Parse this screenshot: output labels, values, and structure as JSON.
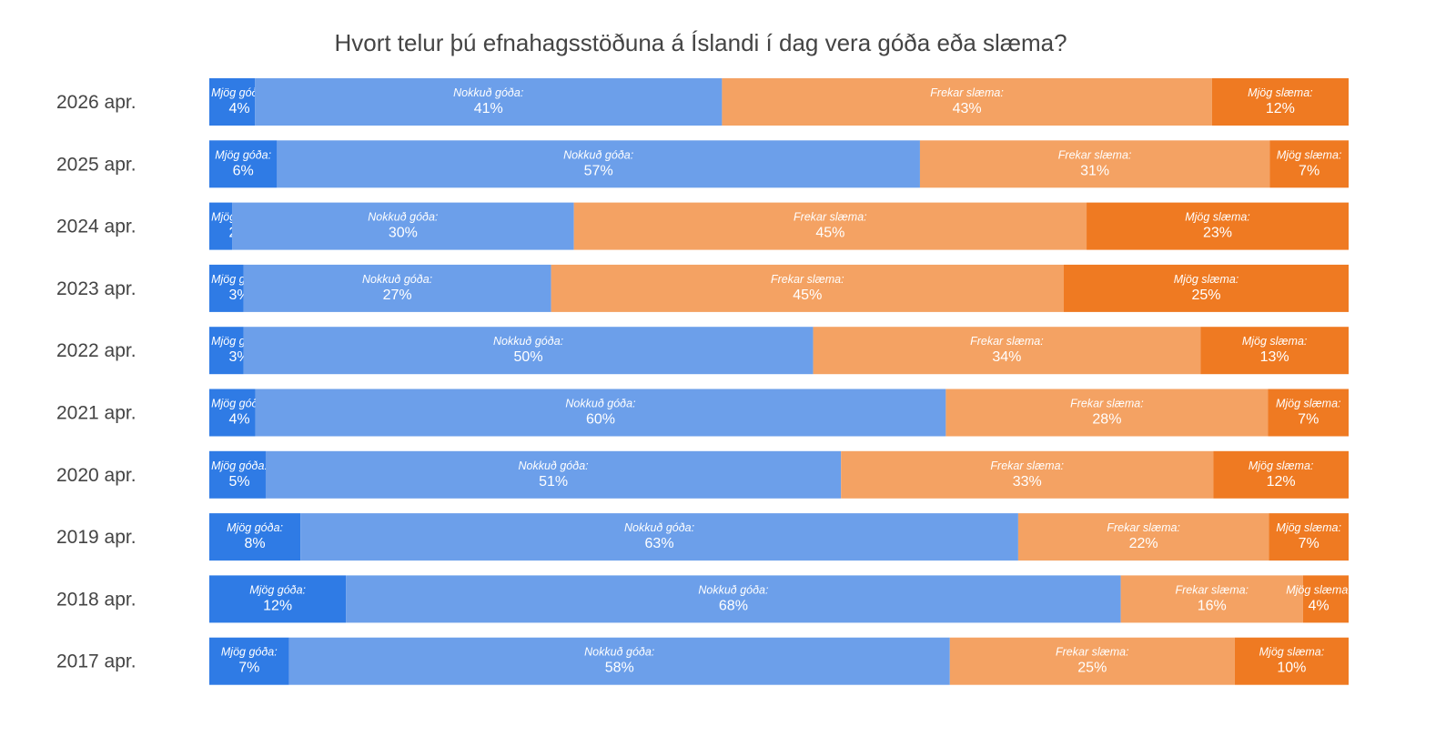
{
  "chart_data": {
    "type": "bar",
    "orientation": "horizontal",
    "stacked": "100%",
    "title": "Hvort telur þú efnahagsstöðuna á Íslandi í dag vera góða eða slæma?",
    "categories": [
      "2026 apr.",
      "2025 apr.",
      "2024 apr.",
      "2023 apr.",
      "2022 apr.",
      "2021 apr.",
      "2020 apr.",
      "2019 apr.",
      "2018 apr.",
      "2017 apr."
    ],
    "series": [
      {
        "name": "Mjög góða:",
        "color": "#2f7be5",
        "values": [
          4,
          6,
          2,
          3,
          3,
          4,
          5,
          8,
          12,
          7
        ]
      },
      {
        "name": "Nokkuð góða:",
        "color": "#6c9fea",
        "values": [
          41,
          57,
          30,
          27,
          50,
          60,
          51,
          63,
          68,
          58
        ]
      },
      {
        "name": "Frekar slæma:",
        "color": "#f4a263",
        "values": [
          43,
          31,
          45,
          45,
          34,
          28,
          33,
          22,
          16,
          25
        ]
      },
      {
        "name": "Mjög slæma:",
        "color": "#ef7a22",
        "values": [
          12,
          7,
          23,
          25,
          13,
          7,
          12,
          7,
          4,
          10
        ]
      }
    ],
    "value_suffix": "%",
    "grid": false,
    "legend": "none"
  }
}
